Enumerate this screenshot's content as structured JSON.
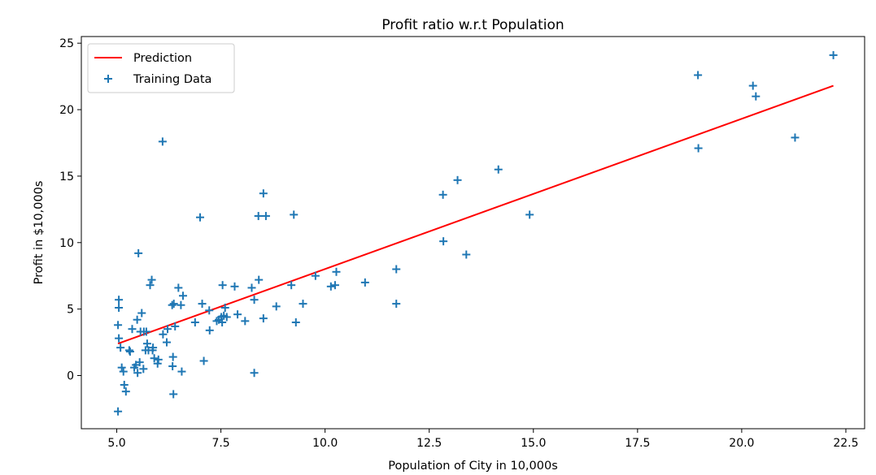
{
  "chart_data": {
    "type": "scatter",
    "title": "Profit ratio w.r.t Population",
    "xlabel": "Population of City in 10,000s",
    "ylabel": "Profit in $10,000s",
    "xlim": [
      4.15,
      22.95
    ],
    "ylim": [
      -4.0,
      25.5
    ],
    "xticks": [
      5.0,
      7.5,
      10.0,
      12.5,
      15.0,
      17.5,
      20.0,
      22.5
    ],
    "xtick_labels": [
      "5.0",
      "7.5",
      "10.0",
      "12.5",
      "15.0",
      "17.5",
      "20.0",
      "22.5"
    ],
    "yticks": [
      0,
      5,
      10,
      15,
      20,
      25
    ],
    "ytick_labels": [
      "0",
      "5",
      "10",
      "15",
      "20",
      "25"
    ],
    "grid": false,
    "legend_position": "top-left",
    "series": [
      {
        "name": "Prediction",
        "kind": "line",
        "color": "#ff0000",
        "x": [
          5.03,
          22.2
        ],
        "y": [
          2.4,
          21.8
        ]
      },
      {
        "name": "Training Data",
        "kind": "scatter",
        "marker": "+",
        "color": "#1f77b4",
        "x": [
          5.03,
          5.03,
          5.05,
          5.05,
          5.05,
          5.09,
          5.12,
          5.16,
          5.18,
          5.22,
          5.3,
          5.32,
          5.37,
          5.42,
          5.46,
          5.49,
          5.5,
          5.52,
          5.55,
          5.57,
          5.6,
          5.64,
          5.65,
          5.69,
          5.71,
          5.73,
          5.76,
          5.8,
          5.84,
          5.86,
          5.87,
          5.9,
          5.98,
          6.0,
          6.11,
          6.2,
          6.22,
          6.33,
          6.34,
          6.35,
          6.36,
          6.37,
          6.4,
          6.48,
          6.54,
          6.56,
          6.59,
          6.88,
          7.0,
          7.05,
          7.09,
          7.22,
          7.23,
          7.4,
          7.45,
          7.51,
          7.53,
          7.54,
          7.57,
          7.6,
          7.64,
          7.83,
          7.9,
          8.08,
          8.24,
          8.3,
          8.3,
          8.4,
          8.41,
          8.52,
          8.52,
          8.58,
          8.83,
          9.19,
          9.25,
          9.3,
          9.47,
          9.77,
          10.14,
          10.24,
          10.27,
          10.96,
          11.71,
          11.71,
          12.83,
          12.84,
          13.18,
          13.39,
          14.16,
          14.91,
          18.95,
          18.96,
          20.27,
          20.34,
          21.28,
          22.2,
          6.1
        ],
        "y": [
          -2.7,
          3.8,
          5.7,
          5.1,
          2.8,
          2.1,
          0.6,
          0.3,
          -0.7,
          -1.2,
          1.9,
          1.8,
          3.5,
          0.6,
          0.8,
          4.2,
          0.2,
          9.2,
          1.0,
          3.3,
          4.7,
          0.5,
          3.3,
          1.9,
          3.3,
          2.4,
          1.9,
          6.8,
          7.2,
          1.9,
          2.1,
          1.3,
          0.9,
          1.2,
          3.1,
          2.5,
          3.5,
          5.3,
          0.7,
          1.4,
          -1.4,
          5.4,
          3.7,
          6.6,
          5.3,
          0.3,
          6.0,
          4.0,
          11.9,
          5.4,
          1.1,
          4.9,
          3.4,
          4.1,
          4.2,
          4.4,
          4.0,
          6.8,
          4.5,
          5.1,
          4.4,
          6.7,
          4.6,
          4.1,
          6.6,
          5.7,
          0.2,
          12.0,
          7.2,
          13.7,
          4.3,
          12.0,
          5.2,
          6.8,
          12.1,
          4.0,
          5.4,
          7.5,
          6.7,
          6.8,
          7.8,
          7.0,
          8.0,
          5.4,
          13.6,
          10.1,
          14.7,
          9.1,
          15.5,
          12.1,
          22.6,
          17.1,
          21.8,
          21.0,
          17.9,
          24.1,
          17.6
        ]
      }
    ]
  }
}
